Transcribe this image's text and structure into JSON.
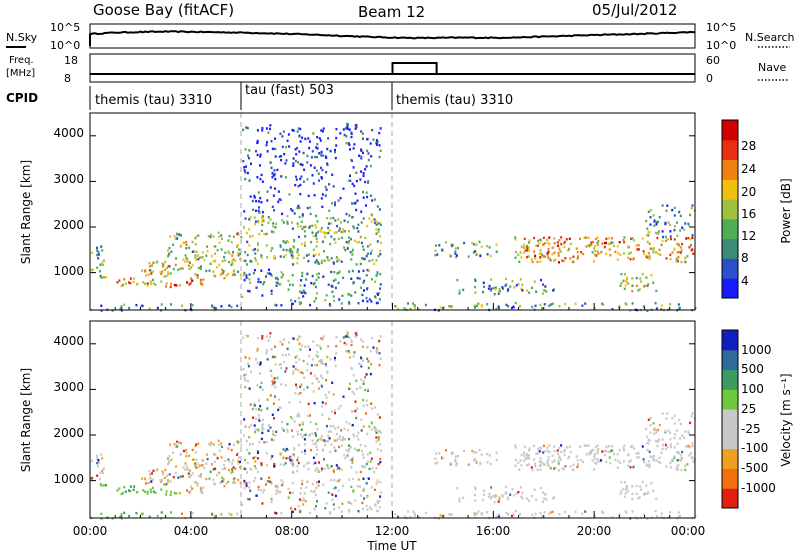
{
  "header": {
    "station": "Goose Bay (fitACF)",
    "beam": "Beam 12",
    "date": "05/Jul/2012"
  },
  "noise_panel": {
    "left_label": "N.Sky",
    "right_label": "N.Search",
    "left_ticks": [
      "10^5",
      "10^0"
    ],
    "right_ticks": [
      "10^5",
      "10^0"
    ],
    "sky_trace": [
      3.0,
      3.35,
      3.5,
      3.6,
      3.55,
      3.45,
      3.35,
      3.2,
      3.0,
      2.8,
      2.55,
      2.3,
      2.1,
      2.0,
      2.05,
      2.1,
      2.05,
      2.15,
      2.35,
      2.55,
      2.75,
      2.9,
      3.05,
      3.3,
      3.5
    ]
  },
  "freq_panel": {
    "left_label_1": "Freq.",
    "left_label_2": "[MHz]",
    "left_ticks": [
      "18",
      "8"
    ],
    "right_label": "Nave",
    "right_ticks": [
      "60",
      "0"
    ],
    "nave_step": {
      "start_hour": 12.0,
      "end_hour": 13.75
    }
  },
  "cpid": {
    "label": "CPID",
    "segments": [
      {
        "text": "themis (tau) 3310",
        "start_hour": 0,
        "end_hour": 6
      },
      {
        "text": "tau (fast) 503",
        "start_hour": 6,
        "end_hour": 12
      },
      {
        "text": "themis (tau) 3310",
        "start_hour": 12,
        "end_hour": 24
      }
    ]
  },
  "chart_data": [
    {
      "type": "heatmap",
      "quantity": "Power",
      "ylabel": "Slant Range [km]",
      "yticks": [
        "1000",
        "2000",
        "3000",
        "4000"
      ],
      "ylim": [
        180,
        4500
      ],
      "xlim": [
        0,
        24
      ],
      "colorbar_title": "Power [dB]",
      "colorbar_ticks": [
        "28",
        "24",
        "20",
        "16",
        "12",
        "8",
        "4"
      ],
      "colorbar_colors": [
        "#1a1aff",
        "#2a4fc8",
        "#3c8a78",
        "#4fae55",
        "#a0c040",
        "#f0c010",
        "#f08010",
        "#e83010",
        "#d00000"
      ],
      "scatter_regions": [
        {
          "h0": 0.0,
          "h1": 0.6,
          "r0": 900,
          "r1": 1650,
          "level": 0.45
        },
        {
          "h0": 1.0,
          "h1": 4.5,
          "r0": 700,
          "r1": 900,
          "level": 0.7
        },
        {
          "h0": 2.0,
          "h1": 6.0,
          "r0": 900,
          "r1": 1300,
          "level": 0.55
        },
        {
          "h0": 3.0,
          "h1": 6.0,
          "r0": 1300,
          "r1": 1900,
          "level": 0.45
        },
        {
          "h0": 6.0,
          "h1": 11.5,
          "r0": 1200,
          "r1": 2300,
          "level": 0.4
        },
        {
          "h0": 6.0,
          "h1": 11.5,
          "r0": 300,
          "r1": 1100,
          "level": 0.25
        },
        {
          "h0": 6.0,
          "h1": 11.5,
          "r0": 2300,
          "r1": 4300,
          "level": 0.1
        },
        {
          "h0": 13.5,
          "h1": 16.2,
          "r0": 1350,
          "r1": 1700,
          "level": 0.35
        },
        {
          "h0": 14.5,
          "h1": 18.5,
          "r0": 550,
          "r1": 900,
          "level": 0.3
        },
        {
          "h0": 16.8,
          "h1": 24.0,
          "r0": 1250,
          "r1": 1800,
          "level": 0.65
        },
        {
          "h0": 21.0,
          "h1": 22.5,
          "r0": 600,
          "r1": 1000,
          "level": 0.5
        },
        {
          "h0": 22.0,
          "h1": 24.0,
          "r0": 1800,
          "r1": 2500,
          "level": 0.3
        },
        {
          "h0": 12.0,
          "h1": 24.0,
          "r0": 190,
          "r1": 360,
          "level": 0.35
        },
        {
          "h0": 0.0,
          "h1": 6.0,
          "r0": 190,
          "r1": 330,
          "level": 0.3
        }
      ]
    },
    {
      "type": "heatmap",
      "quantity": "Velocity",
      "ylabel": "Slant Range [km]",
      "yticks": [
        "1000",
        "2000",
        "3000",
        "4000"
      ],
      "ylim": [
        180,
        4500
      ],
      "xlim": [
        0,
        24
      ],
      "xlabel": "Time UT",
      "xticks": [
        "00:00",
        "04:00",
        "08:00",
        "12:00",
        "16:00",
        "20:00",
        "00:00"
      ],
      "colorbar_title": "Velocity [m s⁻¹]",
      "colorbar_ticks": [
        "1000",
        "500",
        "100",
        "25",
        "-25",
        "-100",
        "-500",
        "-1000"
      ],
      "colorbar_colors": [
        "#1020c0",
        "#2e6a9a",
        "#3a9a60",
        "#6ec83c",
        "#c8c8c8",
        "#c8c8c8",
        "#f0a020",
        "#f07010",
        "#e02010"
      ]
    }
  ]
}
